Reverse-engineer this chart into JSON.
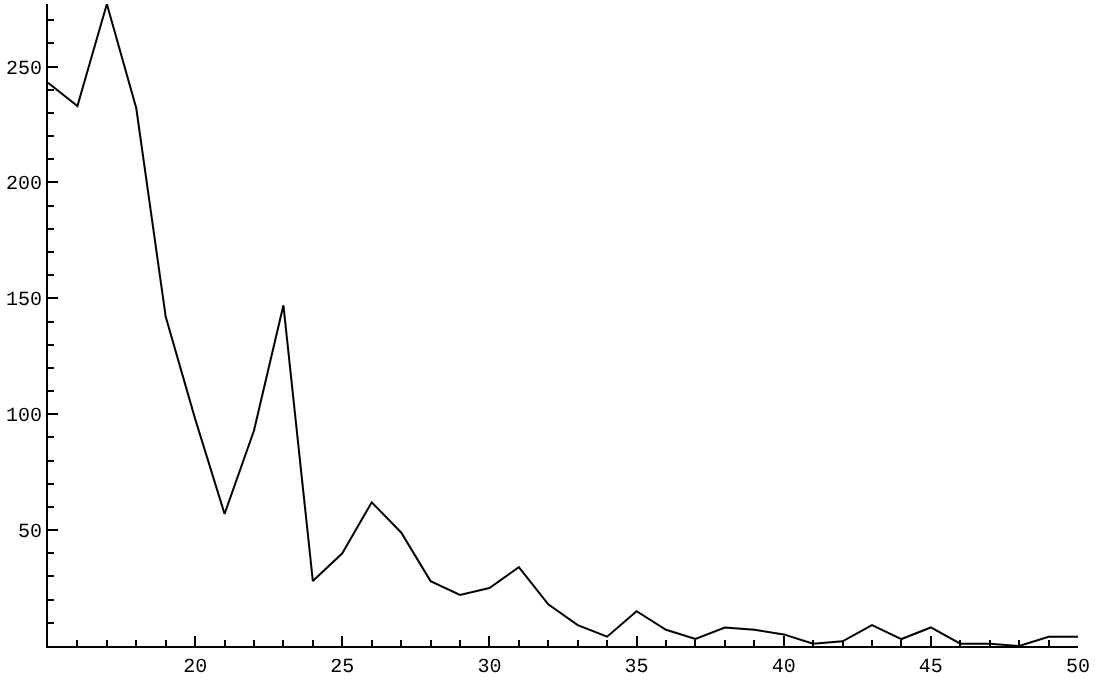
{
  "chart_data": {
    "type": "line",
    "x": [
      15,
      16,
      17,
      18,
      19,
      20,
      21,
      22,
      23,
      24,
      25,
      26,
      27,
      28,
      29,
      30,
      31,
      32,
      33,
      34,
      35,
      36,
      37,
      38,
      39,
      40,
      41,
      42,
      43,
      44,
      45,
      46,
      47,
      48,
      49,
      50
    ],
    "series": [
      {
        "color": "#000000",
        "values": [
          243,
          233,
          277,
          232,
          142,
          98,
          57,
          93,
          147,
          28,
          40,
          62,
          49,
          28,
          22,
          25,
          34,
          18,
          9,
          4,
          15,
          7,
          3,
          8,
          7,
          5,
          1,
          2,
          9,
          3,
          8,
          1,
          1,
          0,
          4,
          4
        ]
      }
    ],
    "xlim": [
      15,
      50
    ],
    "xticks": [
      20,
      25,
      30,
      35,
      40,
      45,
      50
    ],
    "ylim": [
      0,
      277
    ],
    "yticks": [
      50,
      100,
      150,
      200,
      250
    ],
    "marker": "none",
    "line_style": "solid"
  }
}
